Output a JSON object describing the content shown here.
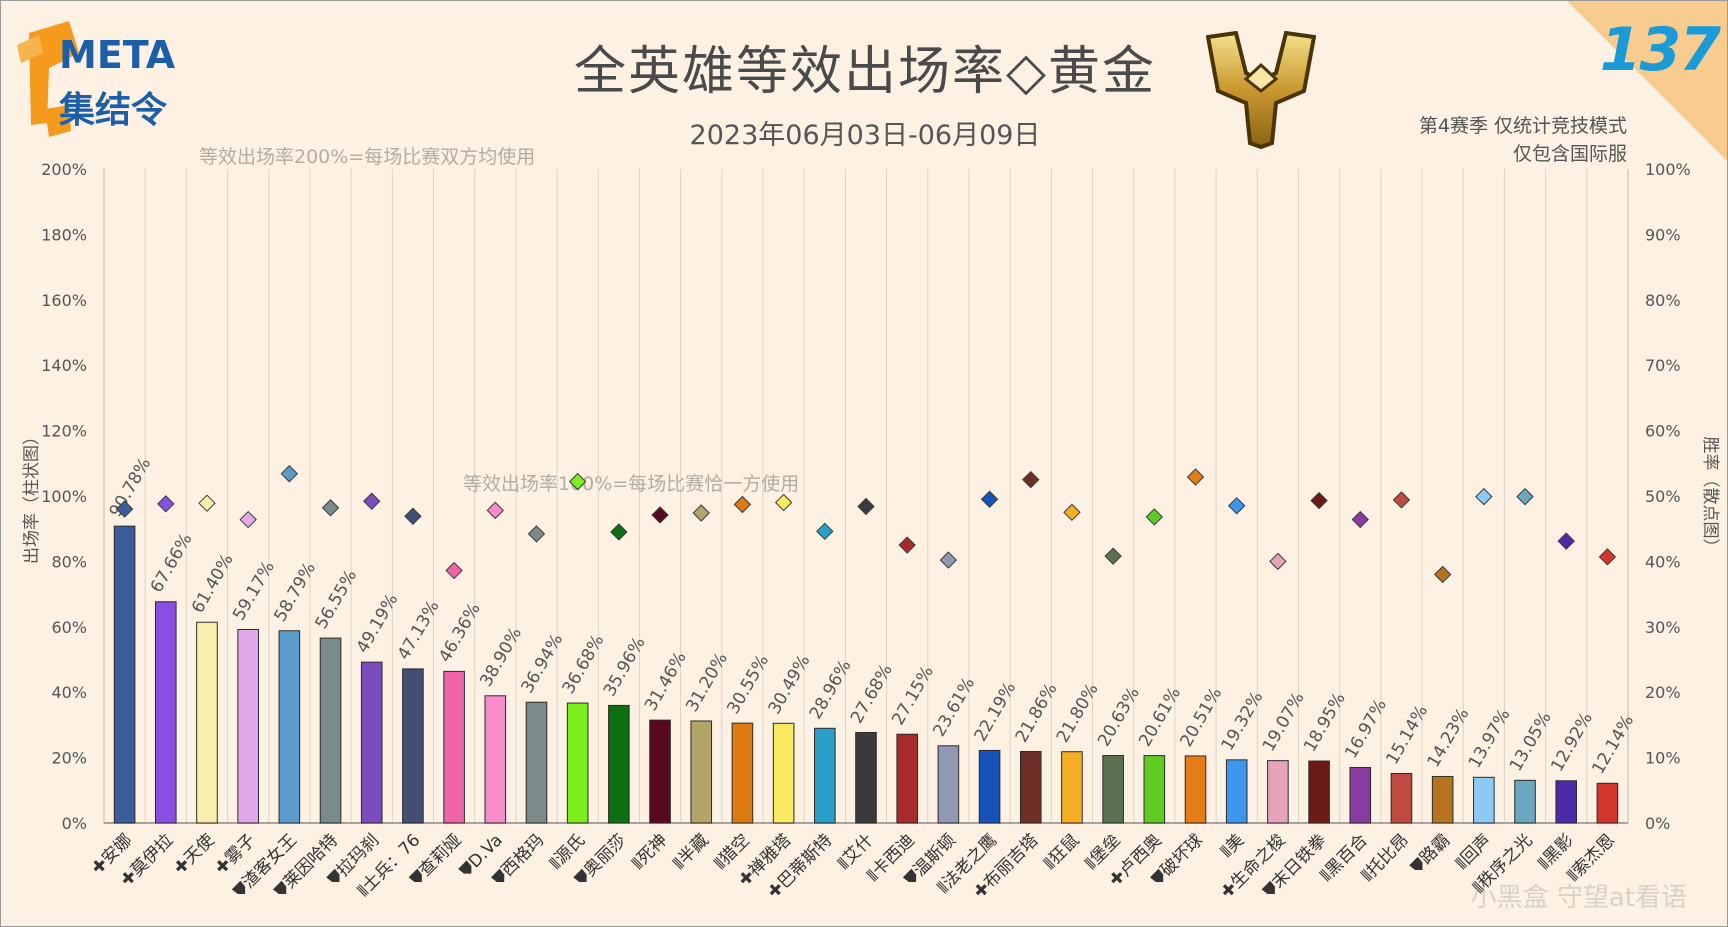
{
  "header": {
    "title": "全英雄等效出场率◇黄金",
    "subtitle": "2023年06月03日-06月09日",
    "note_line1": "第4赛季 仅统计竞技模式",
    "note_line2": "仅包含国际服",
    "logo_line1": "META",
    "logo_line2": "集结令",
    "issue_number": "137",
    "watermark": "小黑盒 守望at看语"
  },
  "chart_data": {
    "type": "bar",
    "title": "全英雄等效出场率◇黄金",
    "ylabel_left": "出场率（柱状图）",
    "ylabel_right": "胜率（散点图）",
    "ylim_left": [
      0,
      200
    ],
    "ylim_right": [
      0,
      100
    ],
    "yticks_left": [
      "0%",
      "20%",
      "40%",
      "60%",
      "80%",
      "100%",
      "120%",
      "140%",
      "160%",
      "180%",
      "200%"
    ],
    "yticks_right": [
      "0%",
      "10%",
      "20%",
      "30%",
      "40%",
      "50%",
      "60%",
      "70%",
      "80%",
      "90%",
      "100%"
    ],
    "reference_lines": [
      {
        "value": 200,
        "label": "等效出场率200%=每场比赛双方均使用"
      },
      {
        "value": 100,
        "label": "等效出场率100%=每场比赛恰一方使用"
      }
    ],
    "grid": "vertical",
    "role_icons": {
      "support": "✚",
      "tank": "⛊",
      "damage": "⦀"
    },
    "heroes": [
      {
        "name": "安娜",
        "role": "support",
        "pick": 90.78,
        "pick_label": "90.78%",
        "win": 48.0,
        "color": "#3b5e9a"
      },
      {
        "name": "莫伊拉",
        "role": "support",
        "pick": 67.66,
        "pick_label": "67.66%",
        "win": 48.8,
        "color": "#8a4fe0"
      },
      {
        "name": "天使",
        "role": "support",
        "pick": 61.4,
        "pick_label": "61.40%",
        "win": 48.9,
        "color": "#f8eeae"
      },
      {
        "name": "雾子",
        "role": "support",
        "pick": 59.17,
        "pick_label": "59.17%",
        "win": 46.4,
        "color": "#e2a9ea"
      },
      {
        "name": "渣客女王",
        "role": "tank",
        "pick": 58.79,
        "pick_label": "58.79%",
        "win": 53.4,
        "color": "#5b9ccc"
      },
      {
        "name": "莱因哈特",
        "role": "tank",
        "pick": 56.55,
        "pick_label": "56.55%",
        "win": 48.2,
        "color": "#7b8a8a"
      },
      {
        "name": "拉玛刹",
        "role": "tank",
        "pick": 49.19,
        "pick_label": "49.19%",
        "win": 49.2,
        "color": "#7a4cc0"
      },
      {
        "name": "士兵：76",
        "role": "damage",
        "pick": 47.13,
        "pick_label": "47.13%",
        "win": 46.9,
        "color": "#434f72"
      },
      {
        "name": "查莉娅",
        "role": "tank",
        "pick": 46.36,
        "pick_label": "46.36%",
        "win": 38.6,
        "color": "#ef63a8"
      },
      {
        "name": "D.Va",
        "role": "tank",
        "pick": 38.9,
        "pick_label": "38.90%",
        "win": 47.8,
        "color": "#f78ecb"
      },
      {
        "name": "西格玛",
        "role": "tank",
        "pick": 36.94,
        "pick_label": "36.94%",
        "win": 44.2,
        "color": "#7c8b8a"
      },
      {
        "name": "源氏",
        "role": "damage",
        "pick": 36.68,
        "pick_label": "36.68%",
        "win": 52.2,
        "color": "#7cef1c"
      },
      {
        "name": "奥丽莎",
        "role": "tank",
        "pick": 35.96,
        "pick_label": "35.96%",
        "win": 44.5,
        "color": "#0e6e12"
      },
      {
        "name": "死神",
        "role": "damage",
        "pick": 31.46,
        "pick_label": "31.46%",
        "win": 47.1,
        "color": "#5a0a1e"
      },
      {
        "name": "半藏",
        "role": "damage",
        "pick": 31.2,
        "pick_label": "31.20%",
        "win": 47.4,
        "color": "#b1a467"
      },
      {
        "name": "猎空",
        "role": "damage",
        "pick": 30.55,
        "pick_label": "30.55%",
        "win": 48.7,
        "color": "#dd7a10"
      },
      {
        "name": "禅雅塔",
        "role": "support",
        "pick": 30.49,
        "pick_label": "30.49%",
        "win": 49.0,
        "color": "#f7e960"
      },
      {
        "name": "巴蒂斯特",
        "role": "support",
        "pick": 28.96,
        "pick_label": "28.96%",
        "win": 44.6,
        "color": "#2aa0c8"
      },
      {
        "name": "艾什",
        "role": "damage",
        "pick": 27.68,
        "pick_label": "27.68%",
        "win": 48.4,
        "color": "#3a3a3a"
      },
      {
        "name": "卡西迪",
        "role": "damage",
        "pick": 27.15,
        "pick_label": "27.15%",
        "win": 42.5,
        "color": "#a82a2a"
      },
      {
        "name": "温斯顿",
        "role": "tank",
        "pick": 23.61,
        "pick_label": "23.61%",
        "win": 40.2,
        "color": "#9297b3"
      },
      {
        "name": "法老之鹰",
        "role": "damage",
        "pick": 22.19,
        "pick_label": "22.19%",
        "win": 49.5,
        "color": "#1652b8"
      },
      {
        "name": "布丽吉塔",
        "role": "support",
        "pick": 21.86,
        "pick_label": "21.86%",
        "win": 52.5,
        "color": "#6e2f28"
      },
      {
        "name": "狂鼠",
        "role": "damage",
        "pick": 21.8,
        "pick_label": "21.80%",
        "win": 47.5,
        "color": "#f5ae26"
      },
      {
        "name": "堡垒",
        "role": "damage",
        "pick": 20.63,
        "pick_label": "20.63%",
        "win": 40.8,
        "color": "#5c7150"
      },
      {
        "name": "卢西奥",
        "role": "support",
        "pick": 20.61,
        "pick_label": "20.61%",
        "win": 46.8,
        "color": "#5eca22"
      },
      {
        "name": "破坏球",
        "role": "tank",
        "pick": 20.51,
        "pick_label": "20.51%",
        "win": 52.9,
        "color": "#e47c18"
      },
      {
        "name": "美",
        "role": "damage",
        "pick": 19.32,
        "pick_label": "19.32%",
        "win": 48.5,
        "color": "#3c96ef"
      },
      {
        "name": "生命之梭",
        "role": "support",
        "pick": 19.07,
        "pick_label": "19.07%",
        "win": 40.0,
        "color": "#e5a2b8"
      },
      {
        "name": "末日铁拳",
        "role": "tank",
        "pick": 18.95,
        "pick_label": "18.95%",
        "win": 49.3,
        "color": "#6b1a14"
      },
      {
        "name": "黑百合",
        "role": "damage",
        "pick": 16.97,
        "pick_label": "16.97%",
        "win": 46.4,
        "color": "#8a3ba0"
      },
      {
        "name": "托比昂",
        "role": "damage",
        "pick": 15.14,
        "pick_label": "15.14%",
        "win": 49.4,
        "color": "#bf4a42"
      },
      {
        "name": "路霸",
        "role": "tank",
        "pick": 14.23,
        "pick_label": "14.23%",
        "win": 38.0,
        "color": "#b87320"
      },
      {
        "name": "回声",
        "role": "damage",
        "pick": 13.97,
        "pick_label": "13.97%",
        "win": 49.9,
        "color": "#8ec9f5"
      },
      {
        "name": "秩序之光",
        "role": "damage",
        "pick": 13.05,
        "pick_label": "13.05%",
        "win": 49.9,
        "color": "#6aa8bf"
      },
      {
        "name": "黑影",
        "role": "damage",
        "pick": 12.92,
        "pick_label": "12.92%",
        "win": 43.1,
        "color": "#4c2aaa"
      },
      {
        "name": "索杰恩",
        "role": "damage",
        "pick": 12.14,
        "pick_label": "12.14%",
        "win": 40.7,
        "color": "#d2372c"
      }
    ]
  }
}
